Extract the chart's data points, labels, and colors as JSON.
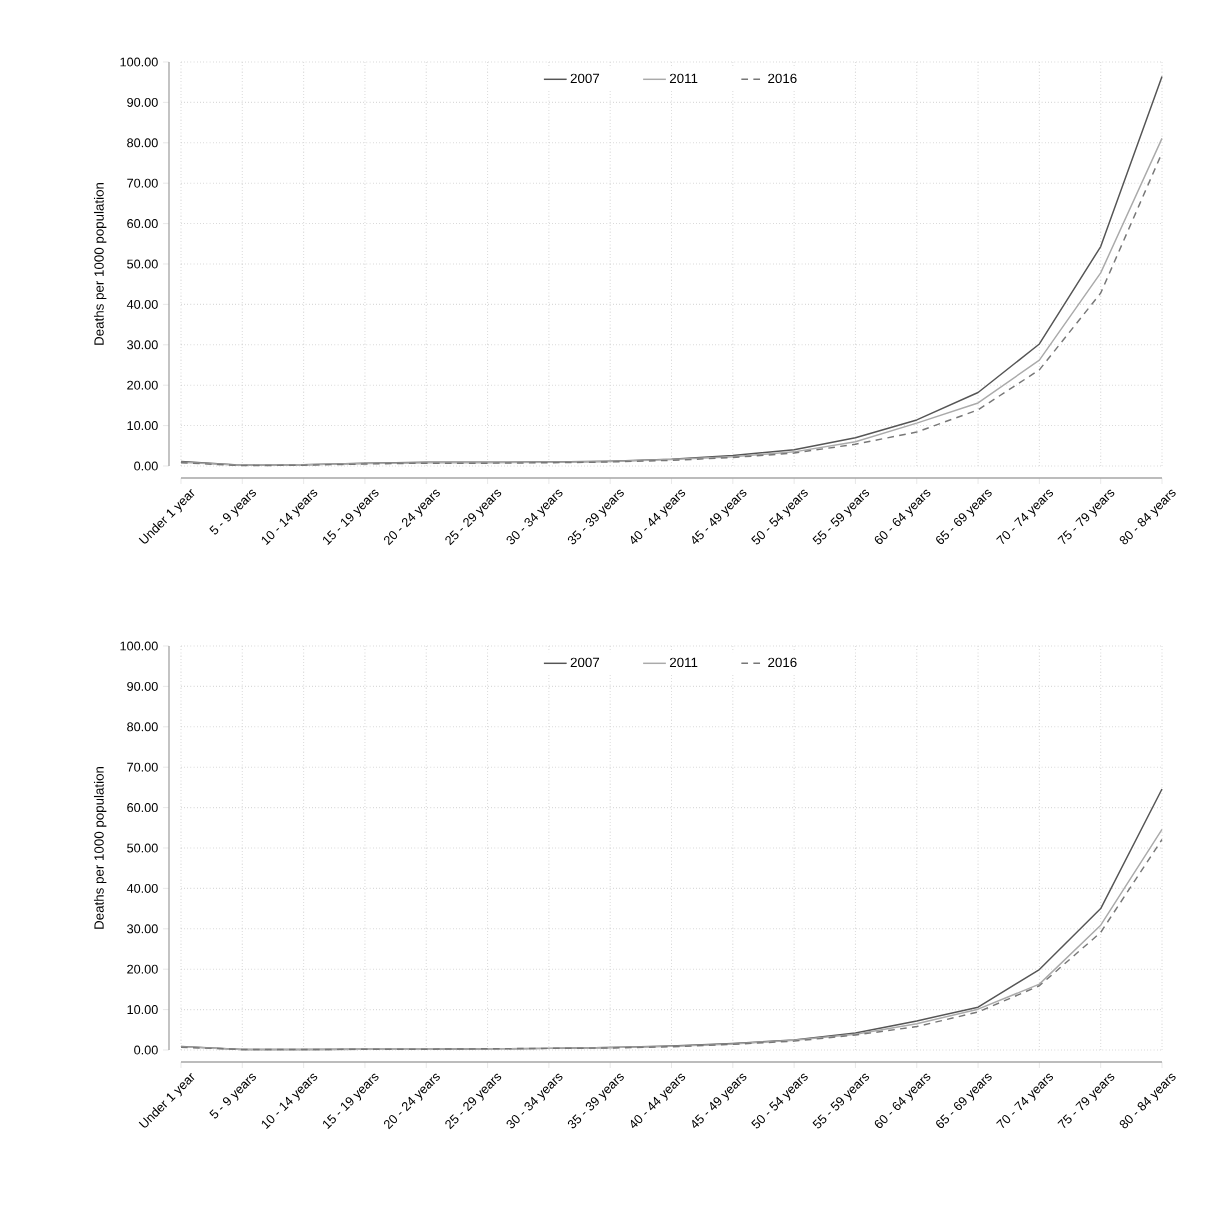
{
  "chart_data": [
    {
      "type": "line",
      "ylabel": "Deaths per 1000 population",
      "categories": [
        "Under 1 year",
        "5 - 9 years",
        "10 - 14 years",
        "15 - 19 years",
        "20 - 24 years",
        "25 - 29 years",
        "30 - 34 years",
        "35 - 39 years",
        "40 - 44 years",
        "45 - 49 years",
        "50 - 54 years",
        "55 - 59 years",
        "60 - 64 years",
        "65 - 69 years",
        "70 - 74 years",
        "75 - 79 years",
        "80 - 84 years"
      ],
      "series": [
        {
          "name": "2007",
          "color": "#555555",
          "line_style": "solid",
          "values": [
            1.1,
            0.2,
            0.3,
            0.7,
            0.9,
            0.9,
            1.0,
            1.2,
            1.7,
            2.6,
            4.0,
            7.0,
            11.4,
            18.2,
            30.2,
            54.3,
            96.4
          ]
        },
        {
          "name": "2011",
          "color": "#aaaaaa",
          "line_style": "solid",
          "values": [
            0.9,
            0.2,
            0.3,
            0.6,
            0.8,
            0.8,
            0.9,
            1.1,
            1.6,
            2.3,
            3.5,
            6.0,
            10.6,
            15.6,
            26.2,
            47.8,
            81.1
          ]
        },
        {
          "name": "2016",
          "color": "#777777",
          "line_style": "dashed",
          "values": [
            0.8,
            0.1,
            0.2,
            0.5,
            0.7,
            0.7,
            0.8,
            1.0,
            1.4,
            2.1,
            3.2,
            5.4,
            8.4,
            13.9,
            23.8,
            42.8,
            77.5
          ]
        }
      ],
      "ylim": [
        0,
        100
      ],
      "yticks": [
        {
          "value": 0,
          "label": "0.00"
        },
        {
          "value": 10,
          "label": "10.00"
        },
        {
          "value": 20,
          "label": "20.00"
        },
        {
          "value": 30,
          "label": "30.00"
        },
        {
          "value": 40,
          "label": "40.00"
        },
        {
          "value": 50,
          "label": "50.00"
        },
        {
          "value": 60,
          "label": "60.00"
        },
        {
          "value": 70,
          "label": "70.00"
        },
        {
          "value": 80,
          "label": "80.00"
        },
        {
          "value": 90,
          "label": "90.00"
        },
        {
          "value": 100,
          "label": "100.00"
        }
      ],
      "grid": true,
      "legend": "top"
    },
    {
      "type": "line",
      "ylabel": "Deaths per 1000 population",
      "categories": [
        "Under 1 year",
        "5 - 9 years",
        "10 - 14 years",
        "15 - 19 years",
        "20 - 24 years",
        "25 - 29 years",
        "30 - 34 years",
        "35 - 39 years",
        "40 - 44 years",
        "45 - 49 years",
        "50 - 54 years",
        "55 - 59 years",
        "60 - 64 years",
        "65 - 69 years",
        "70 - 74 years",
        "75 - 79 years",
        "80 - 84 years"
      ],
      "series": [
        {
          "name": "2007",
          "color": "#555555",
          "line_style": "solid",
          "values": [
            0.9,
            0.1,
            0.1,
            0.2,
            0.2,
            0.3,
            0.4,
            0.6,
            1.0,
            1.6,
            2.5,
            4.2,
            7.2,
            10.6,
            19.9,
            35.0,
            64.6
          ]
        },
        {
          "name": "2011",
          "color": "#aaaaaa",
          "line_style": "solid",
          "values": [
            0.8,
            0.1,
            0.1,
            0.2,
            0.2,
            0.3,
            0.4,
            0.6,
            0.9,
            1.5,
            2.4,
            3.9,
            6.5,
            10.1,
            16.3,
            30.9,
            54.6
          ]
        },
        {
          "name": "2016",
          "color": "#777777",
          "line_style": "dashed",
          "values": [
            0.7,
            0.1,
            0.1,
            0.2,
            0.2,
            0.3,
            0.4,
            0.5,
            0.8,
            1.4,
            2.2,
            3.7,
            5.8,
            9.4,
            15.9,
            29.1,
            52.1
          ]
        }
      ],
      "ylim": [
        0,
        100
      ],
      "yticks": [
        {
          "value": 0,
          "label": "0.00"
        },
        {
          "value": 10,
          "label": "10.00"
        },
        {
          "value": 20,
          "label": "20.00"
        },
        {
          "value": 30,
          "label": "30.00"
        },
        {
          "value": 40,
          "label": "40.00"
        },
        {
          "value": 50,
          "label": "50.00"
        },
        {
          "value": 60,
          "label": "60.00"
        },
        {
          "value": 70,
          "label": "70.00"
        },
        {
          "value": 80,
          "label": "80.00"
        },
        {
          "value": 90,
          "label": "90.00"
        },
        {
          "value": 100,
          "label": "100.00"
        }
      ],
      "grid": true,
      "legend": "top"
    }
  ]
}
